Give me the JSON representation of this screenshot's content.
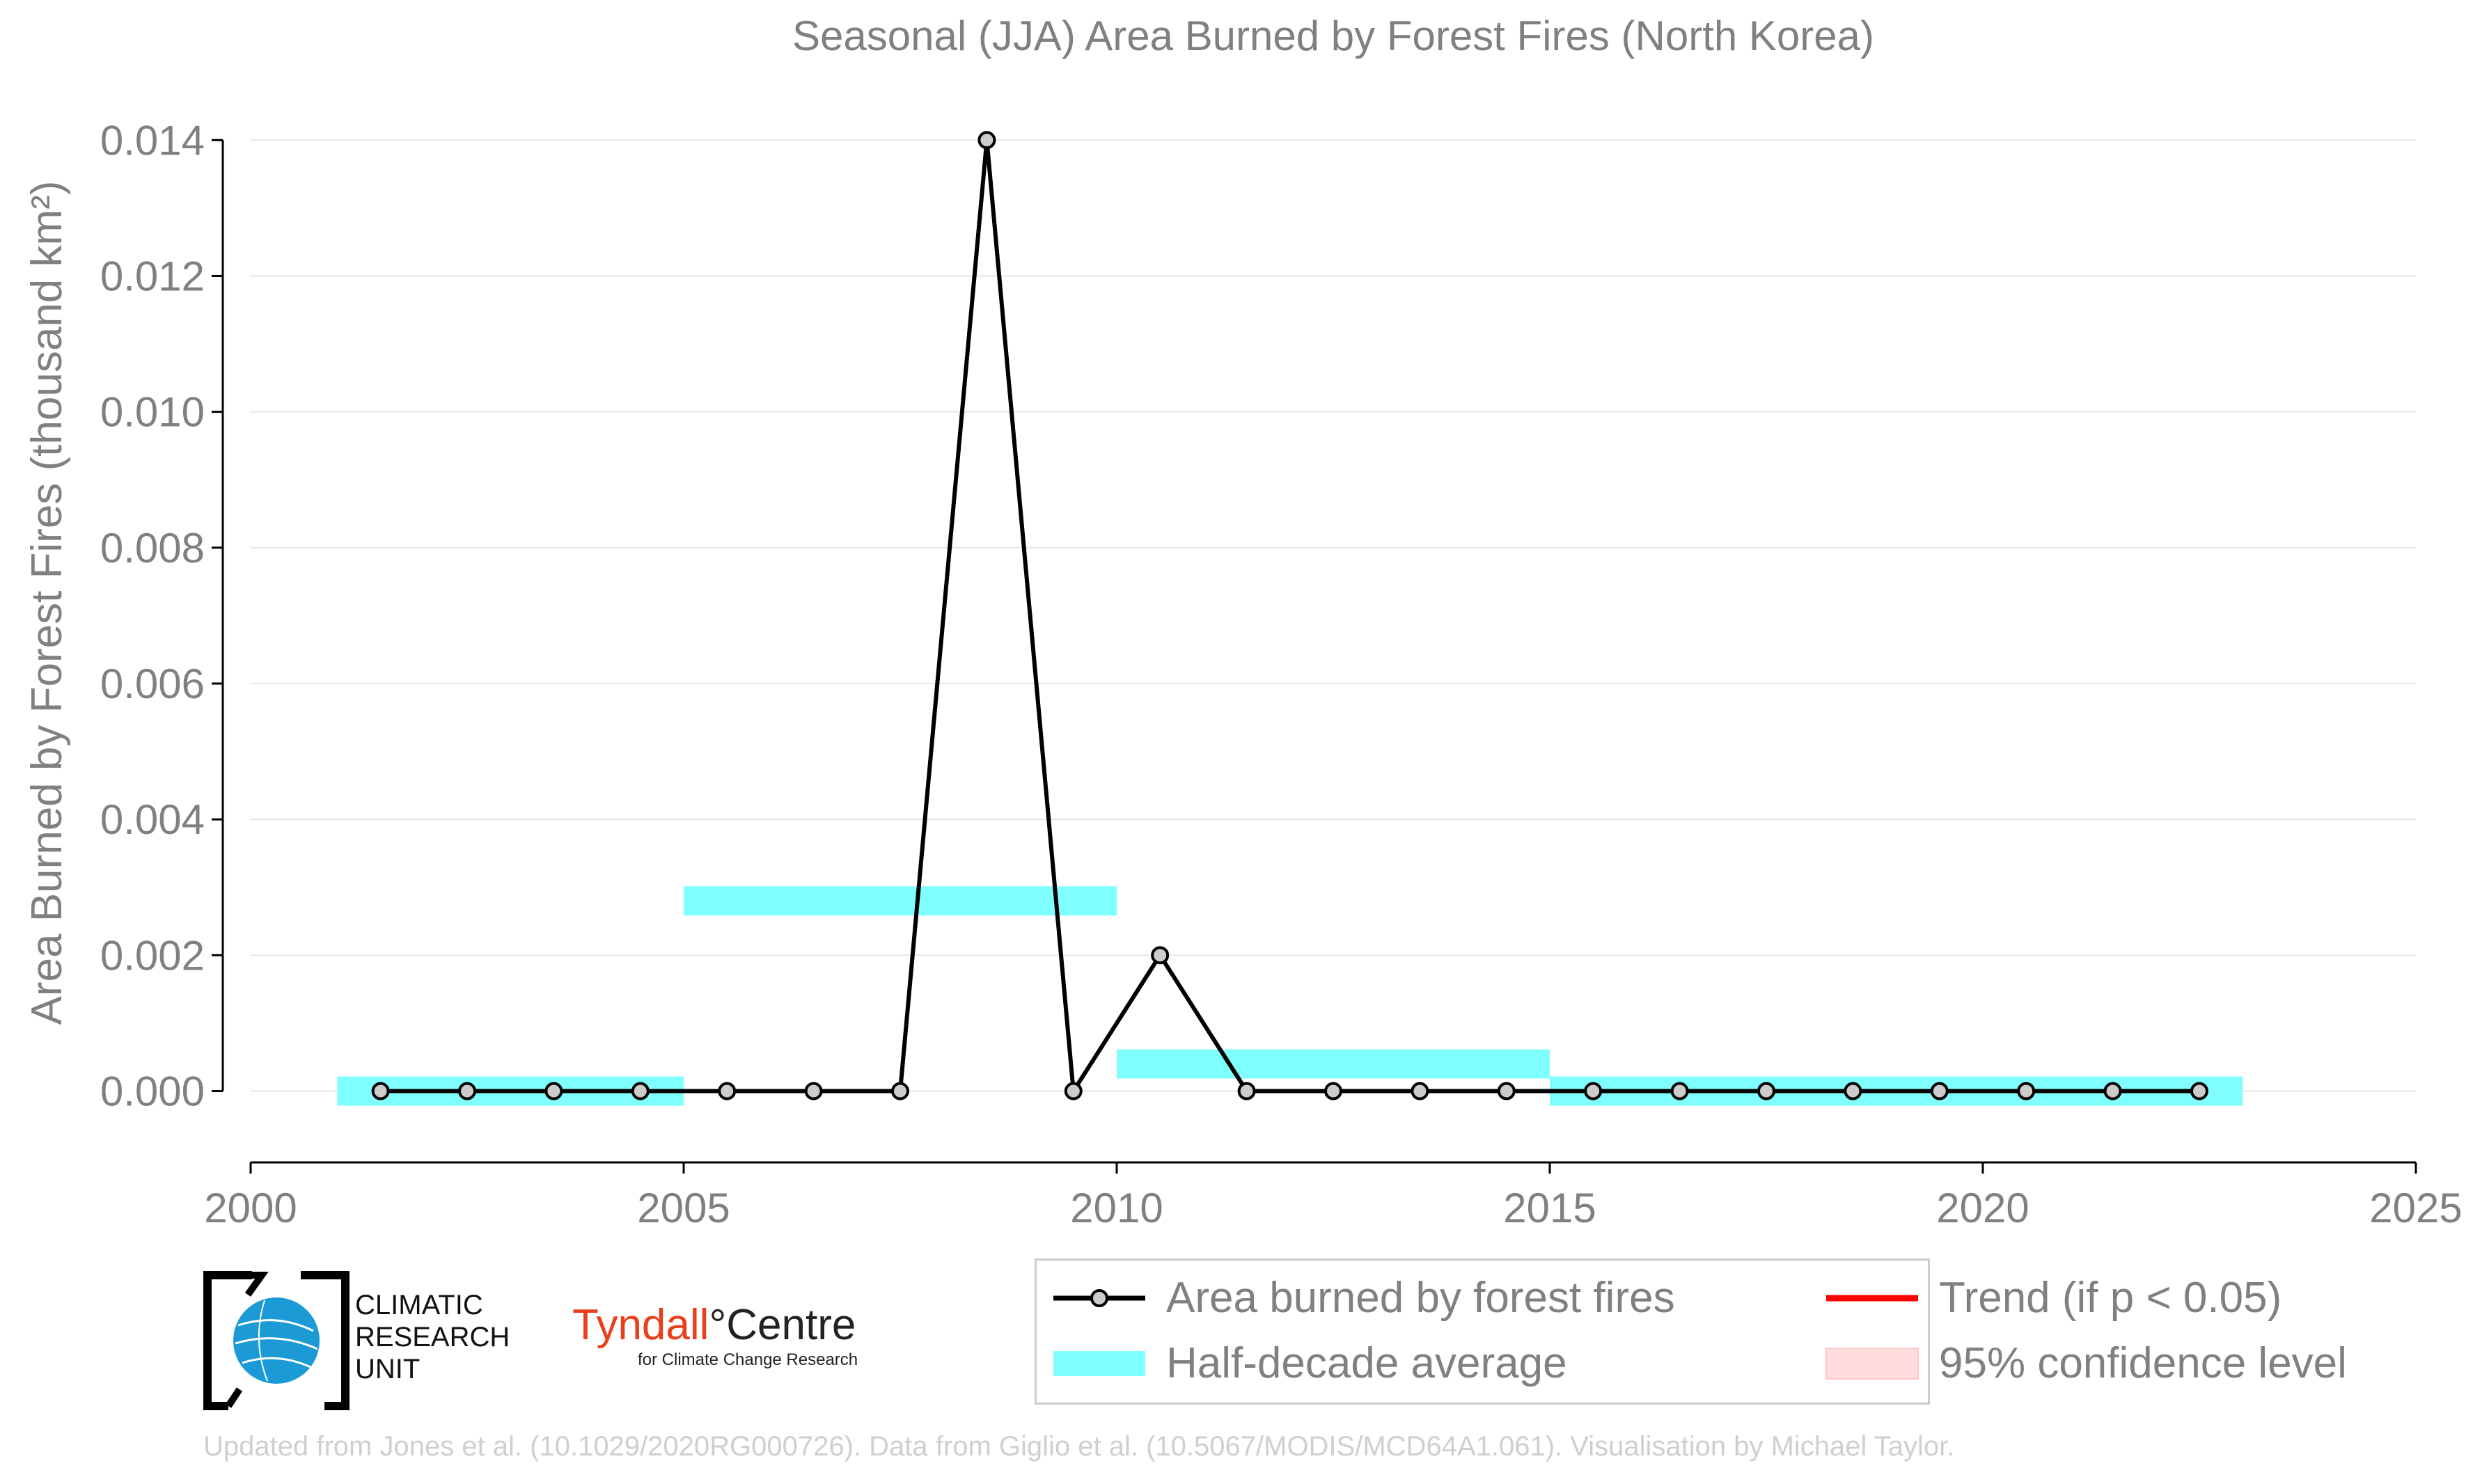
{
  "chart_data": {
    "type": "line",
    "title": "Seasonal (JJA) Area Burned by Forest Fires (North Korea)",
    "ylabel": "Area Burned by Forest Fires (thousand km²)",
    "xlabel": "",
    "xlim": [
      2000,
      2025
    ],
    "ylim": [
      -0.00105,
      0.0143
    ],
    "x_ticks": [
      2000,
      2005,
      2010,
      2015,
      2020,
      2025
    ],
    "x_tick_labels": [
      "2000",
      "2005",
      "2010",
      "2015",
      "2020",
      "2025"
    ],
    "y_ticks": [
      0.0,
      0.002,
      0.004,
      0.006,
      0.008,
      0.01,
      0.012,
      0.014
    ],
    "y_tick_labels": [
      "0.000",
      "0.002",
      "0.004",
      "0.006",
      "0.008",
      "0.010",
      "0.012",
      "0.014"
    ],
    "grid": "horizontal",
    "series": [
      {
        "name": "Area burned by forest fires",
        "color": "#000000",
        "marker_fill": "#cccccc",
        "x": [
          2001.5,
          2002.5,
          2003.5,
          2004.5,
          2005.5,
          2006.5,
          2007.5,
          2008.5,
          2009.5,
          2010.5,
          2011.5,
          2012.5,
          2013.5,
          2014.5,
          2015.5,
          2016.5,
          2017.5,
          2018.5,
          2019.5,
          2020.5,
          2021.5,
          2022.5
        ],
        "values": [
          0,
          0,
          0,
          0,
          0,
          0,
          0,
          0.014,
          0,
          0.002,
          0,
          0,
          0,
          0,
          0,
          0,
          0,
          0,
          0,
          0,
          0,
          0
        ]
      }
    ],
    "half_decade_average": {
      "name": "Half-decade average",
      "color": "#7fffff",
      "segments": [
        {
          "x0": 2001,
          "x1": 2005,
          "value": 0.0
        },
        {
          "x0": 2005,
          "x1": 2010,
          "value": 0.0028
        },
        {
          "x0": 2010,
          "x1": 2015,
          "value": 0.0004
        },
        {
          "x0": 2015,
          "x1": 2023,
          "value": 0.0
        }
      ]
    },
    "legend": {
      "placement": "bottom-right",
      "entries": [
        {
          "label": "Area burned by forest fires",
          "kind": "line-marker",
          "color": "#000000"
        },
        {
          "label": "Trend (if p < 0.05)",
          "kind": "line",
          "color": "#ff0000"
        },
        {
          "label": "Half-decade average",
          "kind": "band",
          "color": "#7fffff"
        },
        {
          "label": "95% confidence level",
          "kind": "patch",
          "color": "#ffdddd"
        }
      ]
    }
  },
  "logos": {
    "cru_lines": [
      "CLIMATIC",
      "RESEARCH",
      "UNIT"
    ],
    "tyndall_name": "Tyndall",
    "tyndall_degree": "°",
    "tyndall_centre": "Centre",
    "tyndall_sub": "for Climate Change Research"
  },
  "credit": "Updated from Jones et al. (10.1029/2020RG000726). Data from Giglio et al. (10.5067/MODIS/MCD64A1.061). Visualisation by Michael Taylor."
}
